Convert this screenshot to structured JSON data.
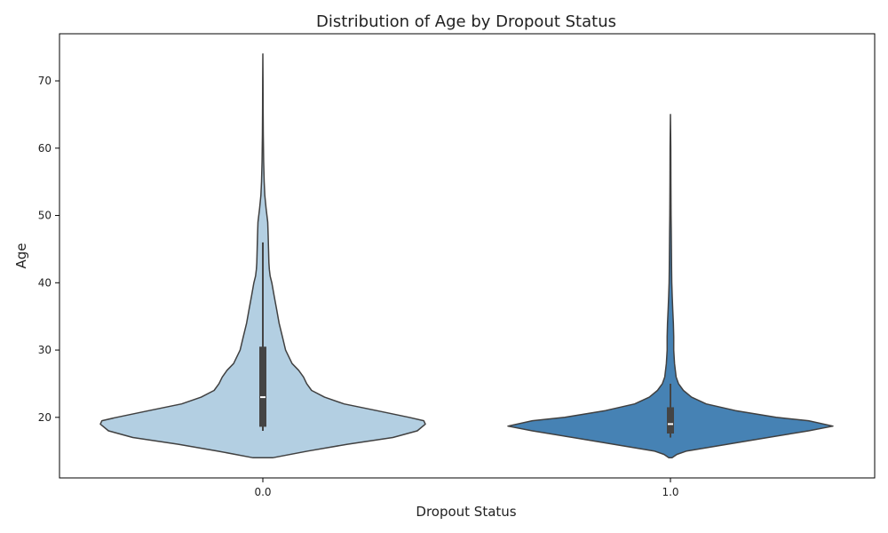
{
  "chart_data": {
    "type": "violin",
    "title": "Distribution of Age by Dropout Status",
    "xlabel": "Dropout Status",
    "ylabel": "Age",
    "categories": [
      "0.0",
      "1.0"
    ],
    "ylim": [
      11,
      77
    ],
    "yticks": [
      20,
      30,
      40,
      50,
      60,
      70
    ],
    "grid": false,
    "colors": {
      "0.0": "#b3cfe2",
      "1.0": "#4682b4",
      "outline": "#404040",
      "box": "#444444",
      "median": "#ffffff"
    },
    "violins": [
      {
        "category": "0.0",
        "min": 14,
        "max": 74,
        "q1": 18.6,
        "median": 23,
        "q3": 30.5,
        "whisker_low": 18,
        "whisker_high": 46,
        "density": [
          [
            14,
            0.06
          ],
          [
            15,
            0.28
          ],
          [
            16,
            0.52
          ],
          [
            17,
            0.8
          ],
          [
            18,
            0.95
          ],
          [
            19,
            1.0
          ],
          [
            19.5,
            0.99
          ],
          [
            20,
            0.9
          ],
          [
            21,
            0.7
          ],
          [
            22,
            0.5
          ],
          [
            23,
            0.38
          ],
          [
            24,
            0.3
          ],
          [
            25,
            0.27
          ],
          [
            26,
            0.25
          ],
          [
            27,
            0.22
          ],
          [
            28,
            0.18
          ],
          [
            30,
            0.14
          ],
          [
            32,
            0.12
          ],
          [
            34,
            0.1
          ],
          [
            36,
            0.085
          ],
          [
            38,
            0.07
          ],
          [
            40,
            0.055
          ],
          [
            41,
            0.045
          ],
          [
            42,
            0.04
          ],
          [
            43,
            0.037
          ],
          [
            45,
            0.035
          ],
          [
            47,
            0.033
          ],
          [
            49,
            0.03
          ],
          [
            51,
            0.02
          ],
          [
            53,
            0.012
          ],
          [
            55,
            0.008
          ],
          [
            58,
            0.005
          ],
          [
            62,
            0.003
          ],
          [
            66,
            0.0015
          ],
          [
            70,
            0.001
          ],
          [
            74,
            0.0
          ]
        ]
      },
      {
        "category": "1.0",
        "min": 14,
        "max": 65,
        "q1": 17.6,
        "median": 19,
        "q3": 21.5,
        "whisker_low": 17,
        "whisker_high": 25,
        "density": [
          [
            14,
            0.01
          ],
          [
            14.5,
            0.04
          ],
          [
            15,
            0.1
          ],
          [
            16,
            0.35
          ],
          [
            17,
            0.6
          ],
          [
            18,
            0.85
          ],
          [
            18.7,
            1.0
          ],
          [
            19.5,
            0.85
          ],
          [
            20,
            0.65
          ],
          [
            21,
            0.4
          ],
          [
            22,
            0.22
          ],
          [
            23,
            0.13
          ],
          [
            24,
            0.08
          ],
          [
            25,
            0.05
          ],
          [
            26,
            0.035
          ],
          [
            28,
            0.025
          ],
          [
            30,
            0.02
          ],
          [
            32,
            0.02
          ],
          [
            34,
            0.018
          ],
          [
            36,
            0.014
          ],
          [
            38,
            0.011
          ],
          [
            40,
            0.008
          ],
          [
            42,
            0.007
          ],
          [
            45,
            0.006
          ],
          [
            48,
            0.005
          ],
          [
            50,
            0.004
          ],
          [
            55,
            0.003
          ],
          [
            60,
            0.002
          ],
          [
            65,
            0.0
          ]
        ]
      }
    ]
  }
}
